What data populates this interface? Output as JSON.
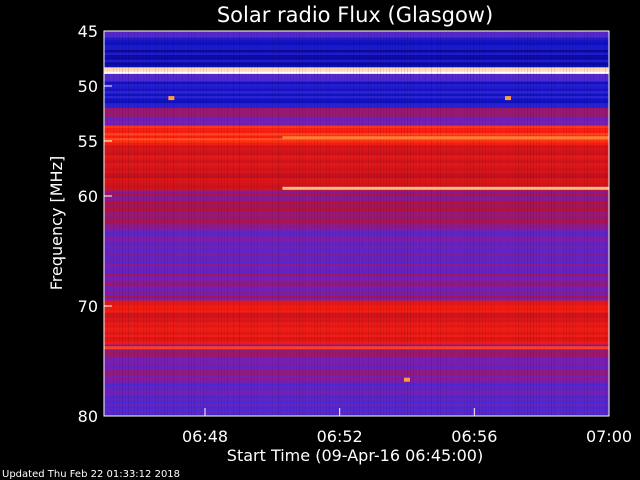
{
  "chart_data": {
    "type": "heatmap",
    "title": "Solar radio Flux (Glasgow)",
    "xlabel": "Start Time (09-Apr-16 06:45:00)",
    "ylabel": "Frequency [MHz]",
    "x_ticks": [
      "06:48",
      "06:52",
      "06:56",
      "07:00"
    ],
    "x_tick_minutes": [
      48,
      52,
      56,
      60
    ],
    "xlim_minutes": [
      45,
      60
    ],
    "y_ticks": [
      45,
      50,
      55,
      60,
      70,
      80
    ],
    "ylim": [
      45,
      80
    ],
    "y_reversed": true,
    "colormap": [
      "#000060",
      "#1010c0",
      "#3a2ee0",
      "#7a1fb0",
      "#c01020",
      "#ff2010",
      "#ffa040",
      "#ffffff"
    ],
    "bands": [
      {
        "f_low": 45.0,
        "f_high": 45.6,
        "level": 0.35
      },
      {
        "f_low": 45.6,
        "f_high": 48.3,
        "level": 0.14
      },
      {
        "f_low": 48.3,
        "f_high": 48.9,
        "level": 1.0
      },
      {
        "f_low": 48.9,
        "f_high": 49.6,
        "level": 0.3
      },
      {
        "f_low": 49.6,
        "f_high": 52.0,
        "level": 0.2
      },
      {
        "f_low": 52.0,
        "f_high": 53.6,
        "level": 0.45
      },
      {
        "f_low": 53.6,
        "f_high": 55.4,
        "level": 0.72
      },
      {
        "f_low": 55.4,
        "f_high": 59.5,
        "level": 0.62
      },
      {
        "f_low": 59.5,
        "f_high": 63.0,
        "level": 0.5
      },
      {
        "f_low": 63.0,
        "f_high": 67.0,
        "level": 0.4
      },
      {
        "f_low": 67.0,
        "f_high": 69.5,
        "level": 0.46
      },
      {
        "f_low": 69.5,
        "f_high": 73.5,
        "level": 0.64
      },
      {
        "f_low": 73.5,
        "f_high": 77.0,
        "level": 0.45
      },
      {
        "f_low": 77.0,
        "f_high": 80.0,
        "level": 0.36
      }
    ],
    "features": [
      {
        "kind": "line",
        "t_start": 50.3,
        "t_end": 60,
        "freq": 59.3,
        "level": 0.9
      },
      {
        "kind": "line",
        "t_start": 50.3,
        "t_end": 60,
        "freq": 54.7,
        "level": 0.82
      },
      {
        "kind": "line",
        "t_start": 45,
        "t_end": 60,
        "freq": 73.8,
        "level": 0.75
      },
      {
        "kind": "spot",
        "t": 54.0,
        "freq": 76.7,
        "level": 0.85
      },
      {
        "kind": "spot",
        "t": 47.0,
        "freq": 51.1,
        "level": 0.85
      },
      {
        "kind": "spot",
        "t": 57.0,
        "freq": 51.1,
        "level": 0.85
      }
    ]
  },
  "footer": {
    "updated": "Updated Thu Feb 22 01:33:12 2018"
  }
}
